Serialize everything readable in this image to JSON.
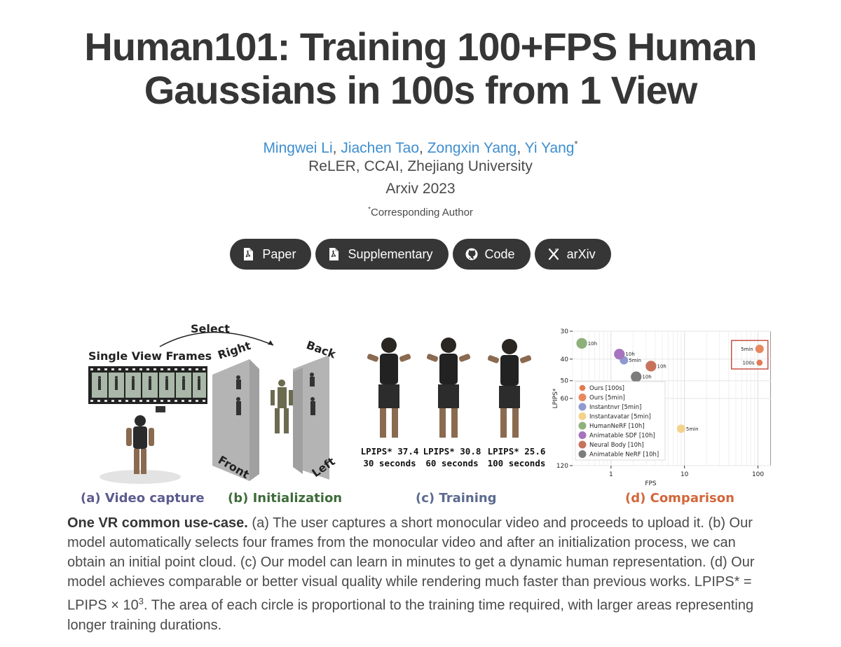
{
  "header": {
    "title_line1": "Human101: Training 100+FPS Human",
    "title_line2": "Gaussians in 100s from 1 View",
    "authors": [
      "Mingwei Li",
      "Jiachen Tao",
      "Zongxin Yang",
      "Yi Yang"
    ],
    "corresponding_mark": "*",
    "affiliation": "ReLER, CCAI, Zhejiang University",
    "venue": "Arxiv 2023",
    "corresponding_note": "Corresponding Author"
  },
  "links": [
    {
      "label": "Paper",
      "icon": "pdf-icon"
    },
    {
      "label": "Supplementary",
      "icon": "pdf-icon"
    },
    {
      "label": "Code",
      "icon": "github-icon"
    },
    {
      "label": "arXiv",
      "icon": "arxiv-icon"
    }
  ],
  "figure": {
    "panel_a": {
      "caption": "(a) Video capture",
      "label": "Single View Frames",
      "color": "#5b5b8f"
    },
    "panel_b": {
      "caption": "(b) Initialization",
      "select_label": "Select",
      "views": [
        "Right",
        "Back",
        "Front",
        "Left"
      ],
      "color": "#3f6b3a"
    },
    "panel_c": {
      "caption": "(c) Training",
      "color": "#5b6b8f",
      "results": [
        {
          "lpips": "LPIPS* 37.4",
          "time": "30 seconds"
        },
        {
          "lpips": "LPIPS* 30.8",
          "time": "60 seconds"
        },
        {
          "lpips": "LPIPS* 25.6",
          "time": "100 seconds"
        }
      ]
    },
    "panel_d": {
      "caption": "(d) Comparison",
      "color": "#d2663a"
    }
  },
  "chart_data": {
    "type": "scatter",
    "xlabel": "FPS",
    "ylabel": "LPIPS*",
    "x_scale": "log",
    "y_scale": "log, inverted",
    "xlim": [
      0.3,
      150
    ],
    "ylim": [
      30,
      120
    ],
    "xticks": [
      "1",
      "10",
      "100"
    ],
    "yticks": [
      "30",
      "40",
      "50",
      "60",
      "120"
    ],
    "grid": true,
    "legend_position": "lower-left",
    "series": [
      {
        "name": "Ours [100s]",
        "x": 105,
        "y": 41.5,
        "label": "100s",
        "color": "#e07b54",
        "size": 1
      },
      {
        "name": "Ours [5min]",
        "x": 105,
        "y": 36,
        "label": "5min",
        "color": "#e8875e",
        "size": 3
      },
      {
        "name": "Instantnvr [5min]",
        "x": 1.5,
        "y": 40.5,
        "label": "5min",
        "color": "#8f9ad1",
        "size": 3
      },
      {
        "name": "Instantavatar [5min]",
        "x": 9,
        "y": 82,
        "label": "5min",
        "color": "#f3d38c",
        "size": 3
      },
      {
        "name": "HumanNeRF [10h]",
        "x": 0.4,
        "y": 34,
        "label": "10h",
        "color": "#8eb07a",
        "size": 6
      },
      {
        "name": "Animatable SDF [10h]",
        "x": 1.3,
        "y": 38,
        "label": "10h",
        "color": "#a673bd",
        "size": 6
      },
      {
        "name": "Neural Body [10h]",
        "x": 3.5,
        "y": 43,
        "label": "10h",
        "color": "#c7735b",
        "size": 6
      },
      {
        "name": "Animatable NeRF [10h]",
        "x": 2.2,
        "y": 48,
        "label": "10h",
        "color": "#7c7c7c",
        "size": 6
      }
    ],
    "highlight_box": "Ours"
  },
  "caption": {
    "lead": "One VR common use-case.",
    "text_before_sup": " (a) The user captures a short monocular video and proceeds to upload it. (b) Our model automatically selects four frames from the monocular video and after an initialization process, we can obtain an initial point cloud. (c) Our model can learn in minutes to get a dynamic human representation. (d) Our model achieves comparable or better visual quality while rendering much faster than previous works. LPIPS* = LPIPS × 10",
    "sup": "3",
    "text_after_sup": ". The area of each circle is proportional to the training time required, with larger areas representing longer training durations."
  }
}
